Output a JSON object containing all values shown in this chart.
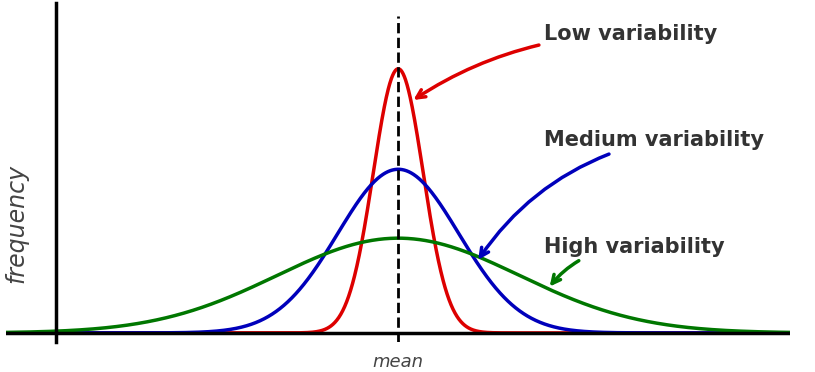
{
  "ylabel": "frequency",
  "xlabel_mean": "mean",
  "mean": 0.0,
  "sigma_low": 0.35,
  "sigma_medium": 0.85,
  "sigma_high": 1.7,
  "color_low": "#dd0000",
  "color_medium": "#0000bb",
  "color_high": "#007700",
  "label_low": "Low variability",
  "label_medium": "Medium variability",
  "label_high": "High variability",
  "label_fontsize": 15,
  "ylabel_fontsize": 17,
  "xlabel_fontsize": 13,
  "xmin": -5.5,
  "xmax": 5.5,
  "ymin": -0.03,
  "ymax": 1.15,
  "background_color": "#ffffff",
  "peak_low": 0.92,
  "peak_med": 0.57,
  "peak_high": 0.33,
  "yaxis_x": -4.8,
  "mean_x": 0.0,
  "dashed_line_x": 0.0
}
